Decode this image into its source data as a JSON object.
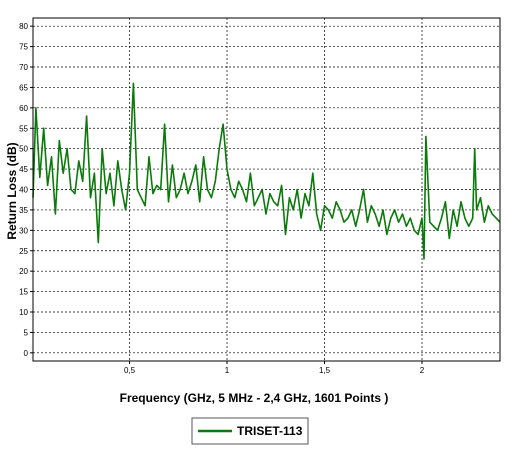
{
  "chart_data": {
    "type": "line",
    "title": "",
    "xlabel": "Frequency (GHz, 5 MHz - 2,4 GHz, 1601 Points )",
    "ylabel": "Return Loss (dB)",
    "xlim": [
      0.005,
      2.4
    ],
    "ylim": [
      -2,
      82
    ],
    "x_ticks": [
      0.5,
      1,
      1.5,
      2
    ],
    "x_tick_labels": [
      "0,5",
      "1",
      "1,5",
      "2"
    ],
    "y_ticks": [
      0,
      5,
      10,
      15,
      20,
      25,
      30,
      35,
      40,
      45,
      50,
      55,
      60,
      65,
      70,
      75,
      80
    ],
    "y_tick_labels": [
      "0",
      "5",
      "10",
      "15",
      "20",
      "25",
      "30",
      "35",
      "40",
      "45",
      "50",
      "55",
      "60",
      "65",
      "70",
      "75",
      "80"
    ],
    "grid": true,
    "legend_position": "bottom-center",
    "colors": {
      "series": "#0a7a0a",
      "grid": "#000000",
      "frame": "#000000"
    },
    "series": [
      {
        "name": "TRISET-113",
        "x": [
          0.005,
          0.02,
          0.04,
          0.06,
          0.08,
          0.1,
          0.12,
          0.14,
          0.16,
          0.18,
          0.2,
          0.22,
          0.24,
          0.26,
          0.28,
          0.3,
          0.32,
          0.34,
          0.36,
          0.38,
          0.4,
          0.42,
          0.44,
          0.46,
          0.48,
          0.5,
          0.52,
          0.54,
          0.56,
          0.58,
          0.6,
          0.62,
          0.64,
          0.66,
          0.68,
          0.7,
          0.72,
          0.74,
          0.76,
          0.78,
          0.8,
          0.82,
          0.84,
          0.86,
          0.88,
          0.9,
          0.92,
          0.94,
          0.96,
          0.98,
          1.0,
          1.02,
          1.04,
          1.06,
          1.08,
          1.1,
          1.12,
          1.14,
          1.16,
          1.18,
          1.2,
          1.22,
          1.24,
          1.26,
          1.28,
          1.3,
          1.32,
          1.34,
          1.36,
          1.38,
          1.4,
          1.42,
          1.44,
          1.46,
          1.48,
          1.5,
          1.52,
          1.54,
          1.56,
          1.58,
          1.6,
          1.62,
          1.64,
          1.66,
          1.68,
          1.7,
          1.72,
          1.74,
          1.76,
          1.78,
          1.8,
          1.82,
          1.84,
          1.86,
          1.88,
          1.9,
          1.92,
          1.94,
          1.96,
          1.98,
          2.0,
          2.01,
          2.02,
          2.04,
          2.06,
          2.08,
          2.1,
          2.12,
          2.14,
          2.16,
          2.18,
          2.2,
          2.22,
          2.24,
          2.26,
          2.27,
          2.28,
          2.3,
          2.32,
          2.34,
          2.36,
          2.38,
          2.4
        ],
        "values": [
          38,
          60,
          43,
          55,
          41,
          48,
          34,
          52,
          44,
          50,
          40,
          39,
          47,
          42,
          58,
          38,
          44,
          27,
          50,
          39,
          44,
          36,
          47,
          40,
          35,
          44,
          66,
          40,
          38,
          36,
          48,
          39,
          41,
          40,
          56,
          37,
          46,
          38,
          40,
          44,
          39,
          42,
          46,
          37,
          48,
          40,
          38,
          42,
          50,
          56,
          45,
          40,
          38,
          42,
          40,
          37,
          44,
          36,
          38,
          40,
          34,
          39,
          37,
          36,
          41,
          29,
          38,
          35,
          40,
          33,
          39,
          36,
          44,
          34,
          30,
          36,
          35,
          33,
          37,
          35,
          32,
          33,
          35,
          31,
          35,
          40,
          32,
          36,
          34,
          31,
          35,
          29,
          33,
          35,
          32,
          34,
          31,
          33,
          30,
          29,
          33,
          23,
          53,
          32,
          31,
          30,
          33,
          37,
          28,
          35,
          31,
          37,
          33,
          31,
          33,
          50,
          35,
          38,
          32,
          36,
          34,
          33,
          32
        ]
      }
    ]
  }
}
